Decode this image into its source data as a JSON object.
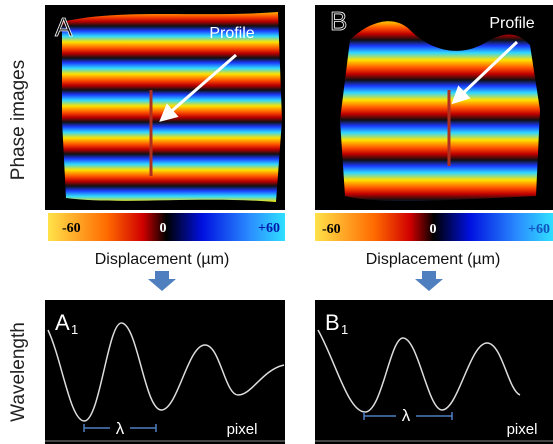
{
  "row_labels": {
    "top": "Phase images",
    "bottom": "Wavelength"
  },
  "panels": [
    {
      "label": "A",
      "profile": "Profile",
      "colorbar": [
        "-60",
        "0",
        "+60"
      ],
      "axis_title": "Displacement (µm)",
      "plot": {
        "label": "A",
        "subscript": "1",
        "lambda": "λ",
        "x_label": "pixel"
      }
    },
    {
      "label": "B",
      "profile": "Profile",
      "colorbar": [
        "-60",
        "0",
        "+60"
      ],
      "axis_title": "Displacement (µm)",
      "plot": {
        "label": "B",
        "subscript": "1",
        "lambda": "λ",
        "x_label": "pixel"
      }
    }
  ]
}
